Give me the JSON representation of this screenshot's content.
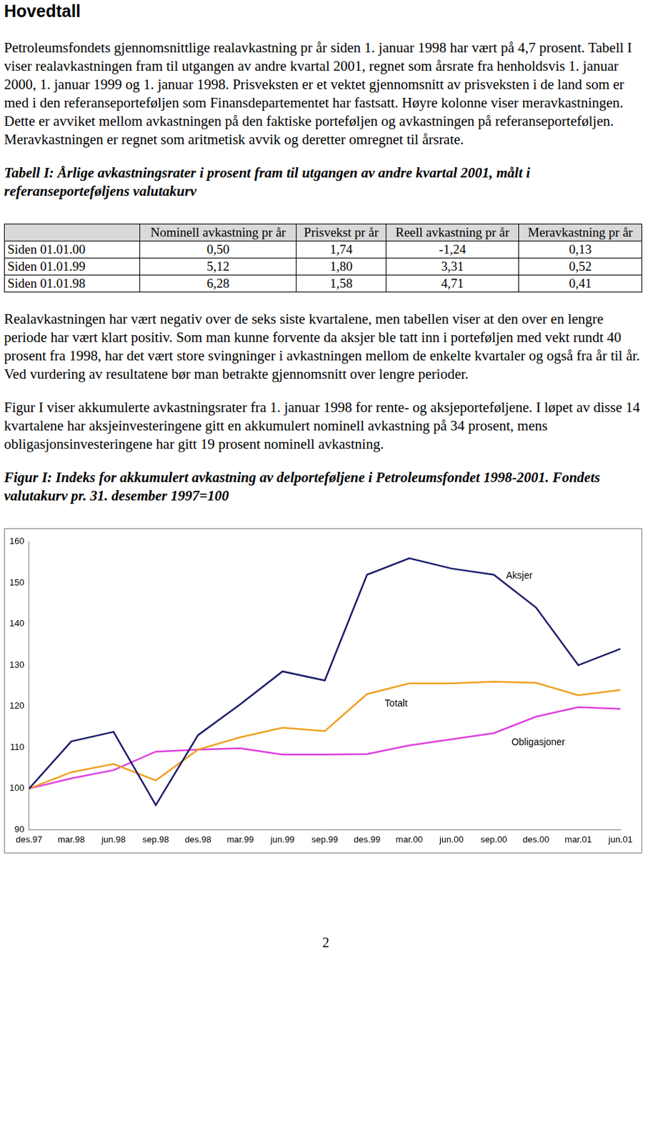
{
  "heading": "Hovedtall",
  "paragraphs_top": [
    "Petroleumsfondets gjennomsnittlige realavkastning pr år siden 1. januar 1998 har vært på 4,7 prosent. Tabell I viser realavkastningen fram til utgangen av andre kvartal 2001, regnet som årsrate fra henholdsvis 1. januar 2000, 1. januar 1999 og 1. januar 1998. Prisveksten er et vektet gjennomsnitt av prisveksten i de land som er med i den referanseporteføljen som Finansdepartementet har fastsatt. Høyre kolonne viser meravkastningen. Dette er avviket mellom avkastningen på den faktiske porteføljen og avkastningen på referanseporteføljen. Meravkastningen er regnet som aritmetisk avvik og deretter omregnet til årsrate."
  ],
  "table": {
    "caption": "Tabell I: Årlige avkastningsrater i prosent fram til utgangen av andre kvartal 2001, målt i referanseporteføljens valutakurv",
    "columns": [
      "Nominell avkastning pr år",
      "Prisvekst pr år",
      "Reell avkastning pr år",
      "Meravkastning pr år"
    ],
    "rows": [
      [
        "Siden 01.01.00",
        "0,50",
        "1,74",
        "-1,24",
        "0,13"
      ],
      [
        "Siden 01.01.99",
        "5,12",
        "1,80",
        "3,31",
        "0,52"
      ],
      [
        "Siden 01.01.98",
        "6,28",
        "1,58",
        "4,71",
        "0,41"
      ]
    ]
  },
  "paragraphs_middle": [
    "Realavkastningen har vært negativ over de seks siste kvartalene, men tabellen viser at den over en lengre periode har vært klart positiv. Som man kunne forvente da aksjer ble tatt inn i porteføljen med vekt rundt 40 prosent fra 1998, har det vært store svingninger i avkastningen mellom de enkelte kvartaler og også fra år til år. Ved vurdering av resultatene bør man betrakte gjennomsnitt over lengre perioder.",
    "Figur I viser akkumulerte avkastningsrater fra 1. januar 1998 for rente- og aksjeporteføljene. I løpet av disse 14 kvartalene har aksjeinvesteringene gitt en akkumulert nominell avkastning på 34 prosent, mens obligasjonsinvesteringene har gitt 19 prosent nominell avkastning."
  ],
  "chart_data": {
    "type": "line",
    "title": "Figur I: Indeks for akkumulert avkastning av delporteføljene i Petroleumsfondet 1998-2001. Fondets valutakurv pr. 31. desember 1997=100",
    "categories": [
      "des.97",
      "mar.98",
      "jun.98",
      "sep.98",
      "des.98",
      "mar.99",
      "jun.99",
      "sep.99",
      "des.99",
      "mar.00",
      "jun.00",
      "sep.00",
      "des.00",
      "mar.01",
      "jun.01"
    ],
    "series": [
      {
        "name": "Aksjer",
        "color": "#1c1c6b",
        "values": [
          100,
          111.5,
          113.8,
          96,
          113,
          120.5,
          128.5,
          126.3,
          152,
          156,
          153.5,
          152,
          144,
          130,
          134
        ]
      },
      {
        "name": "Totalt",
        "color": "#f0a020",
        "values": [
          100,
          104,
          106,
          102,
          109.5,
          112.5,
          114.8,
          114,
          123,
          125.6,
          125.6,
          126,
          125.7,
          122.7,
          124
        ]
      },
      {
        "name": "Obligasjoner",
        "color": "#e040e0",
        "values": [
          100,
          102.5,
          104.5,
          109,
          109.5,
          109.8,
          108.3,
          108.3,
          108.4,
          110.5,
          112,
          113.5,
          117.5,
          119.8,
          119.4
        ]
      }
    ],
    "ylim": [
      90,
      160
    ],
    "yticks": [
      90,
      100,
      110,
      120,
      130,
      140,
      150,
      160
    ],
    "grid": false
  },
  "page_number": "2"
}
